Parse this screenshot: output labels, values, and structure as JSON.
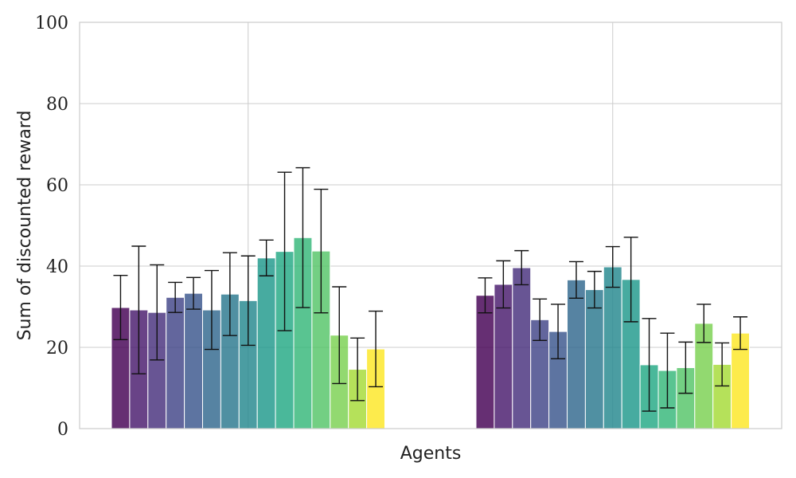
{
  "chart_data": {
    "type": "bar",
    "title": "",
    "xlabel": "Agents",
    "ylabel": "Sum of discounted reward",
    "ylim": [
      0,
      100
    ],
    "yticks": [
      "0",
      "20",
      "40",
      "60",
      "80",
      "100"
    ],
    "grid": true,
    "groups": [
      {
        "values": [
          29.8,
          29.2,
          28.6,
          32.3,
          33.3,
          29.2,
          33.1,
          31.5,
          42.0,
          43.6,
          47.0,
          43.7,
          23.0,
          14.6,
          19.6
        ],
        "errors": [
          7.9,
          15.7,
          11.7,
          3.7,
          3.9,
          9.7,
          10.2,
          11.0,
          4.4,
          19.5,
          17.2,
          15.2,
          11.9,
          7.7,
          9.3
        ]
      },
      {
        "values": [
          32.8,
          35.5,
          39.6,
          26.8,
          23.9,
          36.6,
          34.2,
          39.8,
          36.7,
          15.7,
          14.3,
          15.0,
          25.9,
          15.8,
          23.5
        ],
        "errors": [
          4.3,
          5.8,
          4.2,
          5.1,
          6.7,
          4.5,
          4.5,
          5.0,
          10.4,
          11.4,
          9.2,
          6.3,
          4.7,
          5.3,
          4.0
        ]
      }
    ],
    "colors": [
      "#440154",
      "#481a6c",
      "#472f7d",
      "#414487",
      "#39568c",
      "#31688e",
      "#2a788e",
      "#23888e",
      "#1f988b",
      "#22a884",
      "#35b779",
      "#54c568",
      "#7ad151",
      "#a5db36",
      "#fde725"
    ]
  }
}
